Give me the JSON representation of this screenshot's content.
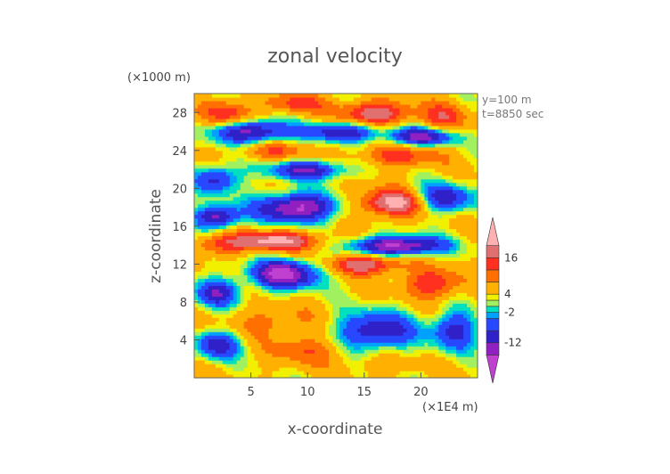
{
  "chart_data": {
    "type": "heatmap",
    "title": "zonal velocity",
    "xlabel": "x-coordinate",
    "ylabel": "z-coordinate",
    "x_unit": "(×1E4 m)",
    "y_unit": "(×1000 m)",
    "annotations": [
      "y=100 m",
      "t=8850 sec"
    ],
    "xlim": [
      0,
      25
    ],
    "ylim": [
      0,
      30
    ],
    "x_ticks": [
      5,
      10,
      15,
      20
    ],
    "y_ticks": [
      4,
      8,
      12,
      16,
      20,
      24,
      28
    ],
    "colorbar": {
      "labels": [
        "16",
        "4",
        "-2",
        "-12"
      ],
      "label_values": [
        16,
        4,
        -2,
        -12
      ],
      "min": -20,
      "max": 24,
      "levels": [
        {
          "from": -20,
          "to": -16,
          "color": "#c040d0"
        },
        {
          "from": -16,
          "to": -12,
          "color": "#9020c0"
        },
        {
          "from": -12,
          "to": -8,
          "color": "#3020c8"
        },
        {
          "from": -8,
          "to": -4,
          "color": "#2848ff"
        },
        {
          "from": -4,
          "to": -2,
          "color": "#00a0ff"
        },
        {
          "from": -2,
          "to": 0,
          "color": "#00e0c0"
        },
        {
          "from": 0,
          "to": 2,
          "color": "#a0f060"
        },
        {
          "from": 2,
          "to": 4,
          "color": "#f0f000"
        },
        {
          "from": 4,
          "to": 8,
          "color": "#ffb000"
        },
        {
          "from": 8,
          "to": 12,
          "color": "#ff7000"
        },
        {
          "from": 12,
          "to": 16,
          "color": "#ff3020"
        },
        {
          "from": 16,
          "to": 20,
          "color": "#e07070"
        },
        {
          "from": 20,
          "to": 24,
          "color": "#ffb0b0"
        }
      ]
    },
    "features": [
      {
        "x": 3,
        "z": 28,
        "sx": 2.0,
        "sz": 1.3,
        "v": 16
      },
      {
        "x": 9,
        "z": 29,
        "sx": 2.5,
        "sz": 1.0,
        "v": 14
      },
      {
        "x": 16,
        "z": 28,
        "sx": 3.0,
        "sz": 1.2,
        "v": 20
      },
      {
        "x": 22,
        "z": 27.5,
        "sx": 2.0,
        "sz": 1.5,
        "v": 14
      },
      {
        "x": 5,
        "z": 26,
        "sx": 3.5,
        "sz": 1.2,
        "v": -14
      },
      {
        "x": 13,
        "z": 26,
        "sx": 3.0,
        "sz": 1.0,
        "v": -12
      },
      {
        "x": 20,
        "z": 25.5,
        "sx": 3.0,
        "sz": 1.0,
        "v": -14
      },
      {
        "x": 7,
        "z": 24,
        "sx": 3.0,
        "sz": 1.0,
        "v": 12
      },
      {
        "x": 18,
        "z": 23.5,
        "sx": 3.5,
        "sz": 1.2,
        "v": 14
      },
      {
        "x": 10,
        "z": 22,
        "sx": 3.5,
        "sz": 1.0,
        "v": -12
      },
      {
        "x": 2,
        "z": 21,
        "sx": 2.0,
        "sz": 1.5,
        "v": -10
      },
      {
        "x": 17.5,
        "z": 18.5,
        "sx": 3.0,
        "sz": 1.4,
        "v": 22
      },
      {
        "x": 9,
        "z": 18,
        "sx": 3.5,
        "sz": 1.5,
        "v": -18
      },
      {
        "x": 22,
        "z": 19,
        "sx": 2.5,
        "sz": 1.5,
        "v": -12
      },
      {
        "x": 2,
        "z": 17,
        "sx": 2.0,
        "sz": 1.2,
        "v": -14
      },
      {
        "x": 7,
        "z": 14.5,
        "sx": 4.0,
        "sz": 1.0,
        "v": 22
      },
      {
        "x": 2,
        "z": 14,
        "sx": 2.0,
        "sz": 1.0,
        "v": 12
      },
      {
        "x": 18,
        "z": 14,
        "sx": 4.0,
        "sz": 1.0,
        "v": -18
      },
      {
        "x": 15,
        "z": 12,
        "sx": 3.0,
        "sz": 1.0,
        "v": 20
      },
      {
        "x": 8,
        "z": 11,
        "sx": 3.0,
        "sz": 1.5,
        "v": -18
      },
      {
        "x": 2,
        "z": 9,
        "sx": 2.0,
        "sz": 1.5,
        "v": -10
      },
      {
        "x": 21,
        "z": 10,
        "sx": 2.5,
        "sz": 1.5,
        "v": 16
      },
      {
        "x": 7,
        "z": 6,
        "sx": 3.5,
        "sz": 1.5,
        "v": 10
      },
      {
        "x": 16,
        "z": 5,
        "sx": 3.5,
        "sz": 2.0,
        "v": -12
      },
      {
        "x": 23,
        "z": 5,
        "sx": 2.0,
        "sz": 2.0,
        "v": -10
      },
      {
        "x": 2,
        "z": 3.5,
        "sx": 2.0,
        "sz": 1.5,
        "v": -10
      },
      {
        "x": 10,
        "z": 3,
        "sx": 3.0,
        "sz": 1.5,
        "v": 12
      },
      {
        "x": 17,
        "z": 1.5,
        "sx": 3.0,
        "sz": 1.0,
        "v": 8
      }
    ]
  }
}
